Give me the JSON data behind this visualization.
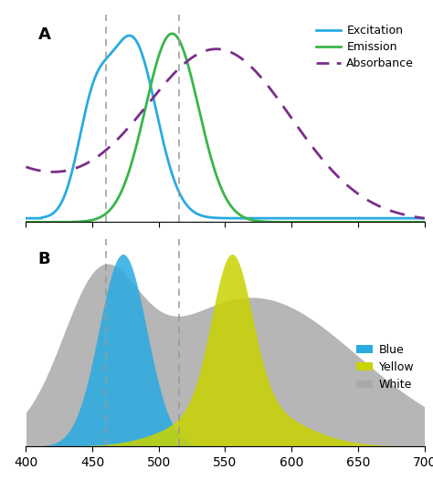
{
  "x_ticks": [
    400,
    450,
    500,
    550,
    600,
    650,
    700
  ],
  "x_tick_labels": [
    "400",
    "450",
    "500",
    "550",
    "600",
    "650",
    "700"
  ],
  "dashed_lines": [
    460,
    515
  ],
  "excitation_color": "#29ABE2",
  "emission_color": "#39B54A",
  "absorbance_color": "#7B2D8B",
  "blue_led_color": "#29ABE2",
  "yellow_led_color": "#C8D400",
  "white_led_color": "#AAAAAA",
  "panel_a_label": "A",
  "panel_b_label": "B",
  "legend_a": [
    "Excitation",
    "Emission",
    "Absorbance"
  ],
  "legend_b": [
    "Blue",
    "Yellow",
    "White"
  ]
}
